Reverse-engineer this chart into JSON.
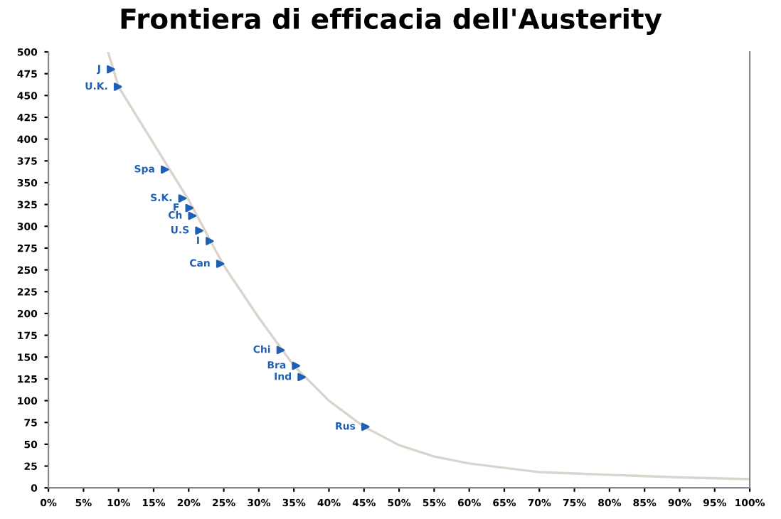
{
  "chart_data": {
    "type": "scatter",
    "title": "Frontiera di efficacia dell'Austerity",
    "series": [
      {
        "color": "#1f5fb4",
        "marker": "triangle",
        "x": [
          8.9,
          9.9,
          16.6,
          19.1,
          20.1,
          20.5,
          21.5,
          23.0,
          24.5,
          33.1,
          35.3,
          36.1,
          45.2
        ],
        "values": [
          480,
          460,
          365,
          332,
          321,
          312,
          295,
          283,
          257,
          158,
          140,
          127,
          70
        ]
      },
      {
        "type": "line",
        "color": "#d9d4cc",
        "marker": "none",
        "x": [
          8.5,
          10,
          15,
          20,
          25,
          30,
          35,
          40,
          45,
          50,
          55,
          60,
          70,
          80,
          90,
          100
        ],
        "values": [
          500,
          460,
          395,
          330,
          255,
          195,
          140,
          100,
          70,
          49,
          36,
          28,
          18,
          15,
          12,
          10
        ]
      }
    ],
    "annotations": [
      {
        "text": "J",
        "x": 8.9,
        "y": 480
      },
      {
        "text": "U.K.",
        "x": 9.9,
        "y": 460
      },
      {
        "text": "Spa",
        "x": 16.6,
        "y": 365
      },
      {
        "text": "S.K.",
        "x": 19.1,
        "y": 332
      },
      {
        "text": "F",
        "x": 20.1,
        "y": 321
      },
      {
        "text": "Ch",
        "x": 20.5,
        "y": 312
      },
      {
        "text": "U.S",
        "x": 21.5,
        "y": 295
      },
      {
        "text": "I",
        "x": 23.0,
        "y": 283
      },
      {
        "text": "Can",
        "x": 24.5,
        "y": 257
      },
      {
        "text": "Chi",
        "x": 33.1,
        "y": 158
      },
      {
        "text": "Bra",
        "x": 35.3,
        "y": 140
      },
      {
        "text": "Ind",
        "x": 36.1,
        "y": 127
      },
      {
        "text": "Rus",
        "x": 45.2,
        "y": 70
      }
    ],
    "xlim": [
      0,
      100
    ],
    "xticks": [
      {
        "value": 0,
        "label": "0%"
      },
      {
        "value": 5,
        "label": "5%"
      },
      {
        "value": 10,
        "label": "10%"
      },
      {
        "value": 15,
        "label": "15%"
      },
      {
        "value": 20,
        "label": "20%"
      },
      {
        "value": 25,
        "label": "25%"
      },
      {
        "value": 30,
        "label": "30%"
      },
      {
        "value": 35,
        "label": "35%"
      },
      {
        "value": 40,
        "label": "40%"
      },
      {
        "value": 45,
        "label": "45%"
      },
      {
        "value": 50,
        "label": "50%"
      },
      {
        "value": 55,
        "label": "55%"
      },
      {
        "value": 60,
        "label": "60%"
      },
      {
        "value": 65,
        "label": "65%"
      },
      {
        "value": 70,
        "label": "70%"
      },
      {
        "value": 75,
        "label": "75%"
      },
      {
        "value": 80,
        "label": "80%"
      },
      {
        "value": 85,
        "label": "85%"
      },
      {
        "value": 90,
        "label": "90%"
      },
      {
        "value": 95,
        "label": "95%"
      },
      {
        "value": 100,
        "label": "100%"
      }
    ],
    "ylim": [
      0,
      500
    ],
    "yticks": [
      0,
      25,
      50,
      75,
      100,
      125,
      150,
      175,
      200,
      225,
      250,
      275,
      300,
      325,
      350,
      375,
      400,
      425,
      450,
      475,
      500
    ],
    "grid": false,
    "legend": false
  }
}
